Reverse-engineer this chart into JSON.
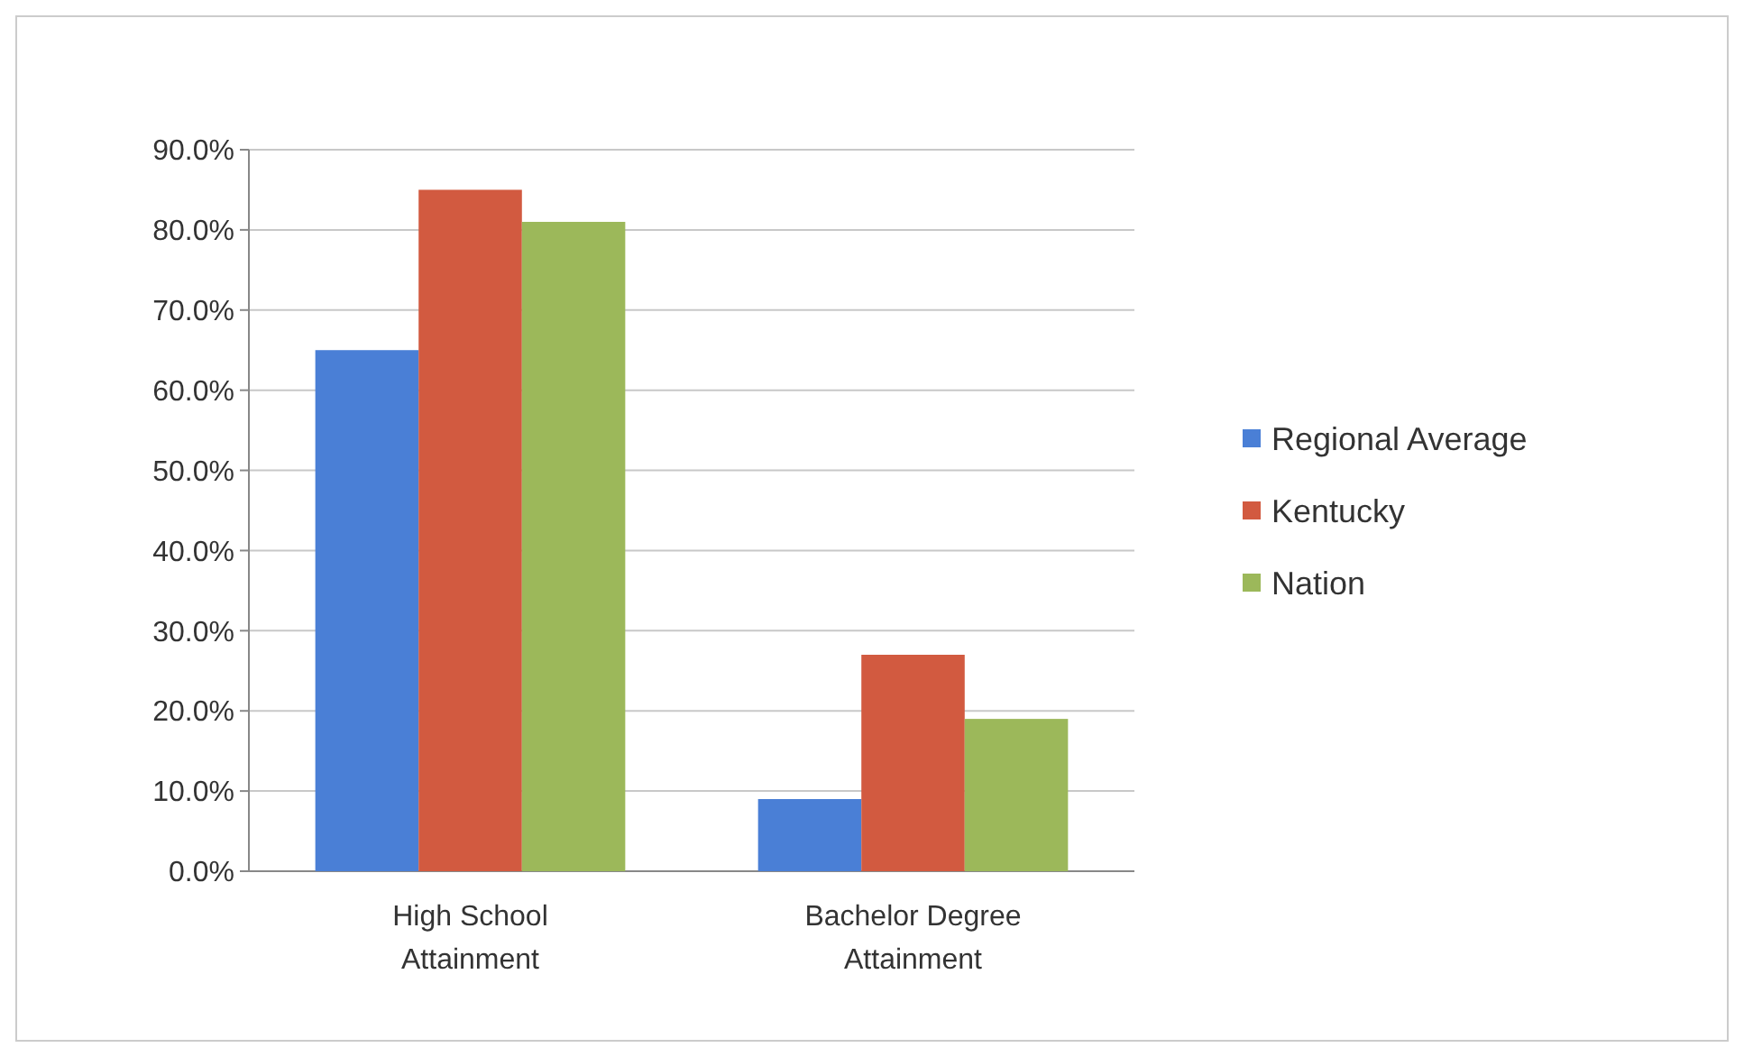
{
  "chart_data": {
    "type": "bar",
    "categories": [
      "High School Attainment",
      "Bachelor Degree Attainment"
    ],
    "series": [
      {
        "name": "Regional Average",
        "color": "#4a7fd6",
        "values": [
          65,
          9
        ]
      },
      {
        "name": "Kentucky",
        "color": "#d25a40",
        "values": [
          85,
          27
        ]
      },
      {
        "name": "Nation",
        "color": "#9cb85a",
        "values": [
          81,
          19
        ]
      }
    ],
    "ylim": [
      0,
      90
    ],
    "yticks": [
      {
        "value": 0,
        "label": "0.0%"
      },
      {
        "value": 10,
        "label": "10.0%"
      },
      {
        "value": 20,
        "label": "20.0%"
      },
      {
        "value": 30,
        "label": "30.0%"
      },
      {
        "value": 40,
        "label": "40.0%"
      },
      {
        "value": 50,
        "label": "50.0%"
      },
      {
        "value": 60,
        "label": "60.0%"
      },
      {
        "value": 70,
        "label": "70.0%"
      },
      {
        "value": 80,
        "label": "80.0%"
      },
      {
        "value": 90,
        "label": "90.0%"
      }
    ],
    "grid": "y",
    "legend": "right"
  }
}
